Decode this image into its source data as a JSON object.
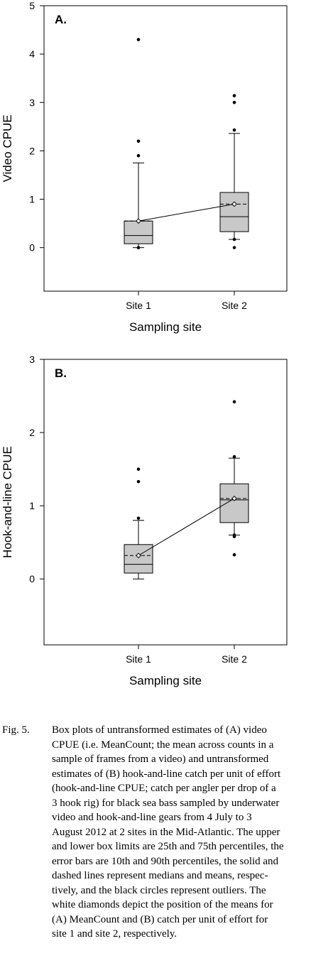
{
  "chart_data": [
    {
      "type": "box",
      "panel_label": "A.",
      "ylabel": "Video CPUE",
      "xlabel": "Sampling site",
      "categories": [
        "Site 1",
        "Site 2"
      ],
      "ylim": [
        -0.9,
        5
      ],
      "yticks": [
        0,
        1,
        2,
        3,
        4,
        5
      ],
      "mean_line": true,
      "boxes": [
        {
          "category": "Site 1",
          "q1": 0.08,
          "median": 0.25,
          "q3": 0.55,
          "p10": 0.0,
          "p90": 1.75,
          "mean": 0.55,
          "outliers": [
            0.0,
            0.0,
            1.9,
            2.2,
            4.3
          ]
        },
        {
          "category": "Site 2",
          "q1": 0.33,
          "median": 0.64,
          "q3": 1.14,
          "p10": 0.17,
          "p90": 2.36,
          "mean": 0.9,
          "outliers": [
            0.0,
            0.17,
            2.43,
            3.0,
            3.14
          ]
        }
      ]
    },
    {
      "type": "box",
      "panel_label": "B.",
      "ylabel": "Hook-and-line CPUE",
      "xlabel": "Sampling site",
      "categories": [
        "Site 1",
        "Site 2"
      ],
      "ylim": [
        -0.9,
        3
      ],
      "yticks": [
        0,
        1,
        2,
        3
      ],
      "mean_line": true,
      "boxes": [
        {
          "category": "Site 1",
          "q1": 0.08,
          "median": 0.2,
          "q3": 0.47,
          "p10": 0.0,
          "p90": 0.8,
          "mean": 0.32,
          "outliers": [
            0.83,
            1.33,
            1.5
          ]
        },
        {
          "category": "Site 2",
          "q1": 0.77,
          "median": 1.08,
          "q3": 1.3,
          "p10": 0.6,
          "p90": 1.65,
          "mean": 1.1,
          "outliers": [
            0.33,
            0.58,
            0.6,
            1.67,
            2.42
          ]
        }
      ]
    }
  ],
  "caption": {
    "label": "Fig. 5.",
    "lines": [
      "Box plots of untransformed estimates of (A) video",
      "CPUE (i.e. MeanCount; the mean across counts in a",
      "sample of frames from a video) and untransformed",
      "estimates of (B) hook-and-line catch per unit of effort",
      "(hook-and-line CPUE; catch per angler per drop of a",
      "3 hook rig) for black sea bass sampled by underwater",
      "video and hook-and-line gears from 4 July to 3",
      "August 2012 at 2 sites in the Mid-Atlantic. The upper",
      "and lower box limits are 25th and 75th percentiles, the",
      "error bars are 10th and 90th percentiles, the solid and",
      "dashed lines represent medians and means, respec-",
      "tively, and the black circles represent outliers. The",
      "white diamonds depict the position of the means for",
      "(A) MeanCount and (B) catch per unit of effort for",
      "site 1 and site 2, respectively."
    ]
  }
}
